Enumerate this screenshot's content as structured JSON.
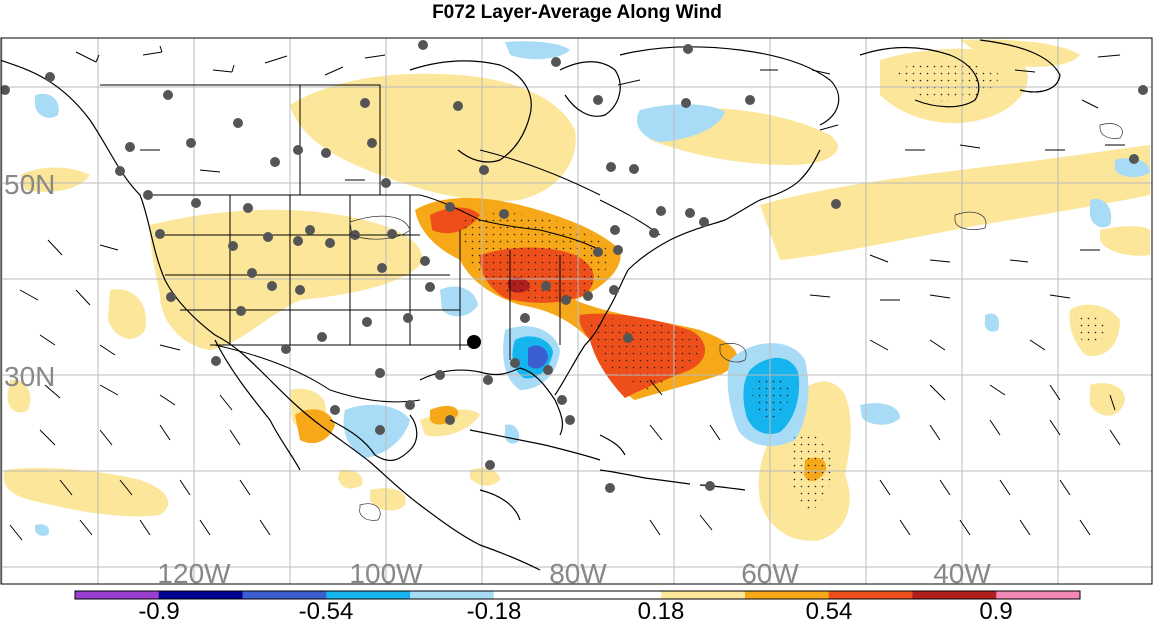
{
  "title": "F072 Layer-Average Along Wind",
  "lat_labels": [
    "50N",
    "30N"
  ],
  "lon_labels": [
    "120W",
    "100W",
    "80W",
    "60W",
    "40W"
  ],
  "colorbar": {
    "colors": [
      "#9b3fd0",
      "#000090",
      "#3b5fd0",
      "#16b4ee",
      "#a8dcf6",
      "#ffffff",
      "#ffffff",
      "#fbe69a",
      "#f7a818",
      "#ee4f1a",
      "#b01e1e",
      "#f289b5"
    ],
    "labels": [
      "-0.9",
      "-0.54",
      "-0.18",
      "0.18",
      "0.54",
      "0.9"
    ]
  },
  "colors": {
    "light_yellow": "#fbe69a",
    "orange": "#f7a818",
    "red_orange": "#ee4f1a",
    "dark_red": "#b01e1e",
    "light_blue": "#a8dcf6",
    "blue": "#16b4ee",
    "royal_blue": "#3b5fd0",
    "grid": "#bbbbbb",
    "station": "#555555"
  }
}
